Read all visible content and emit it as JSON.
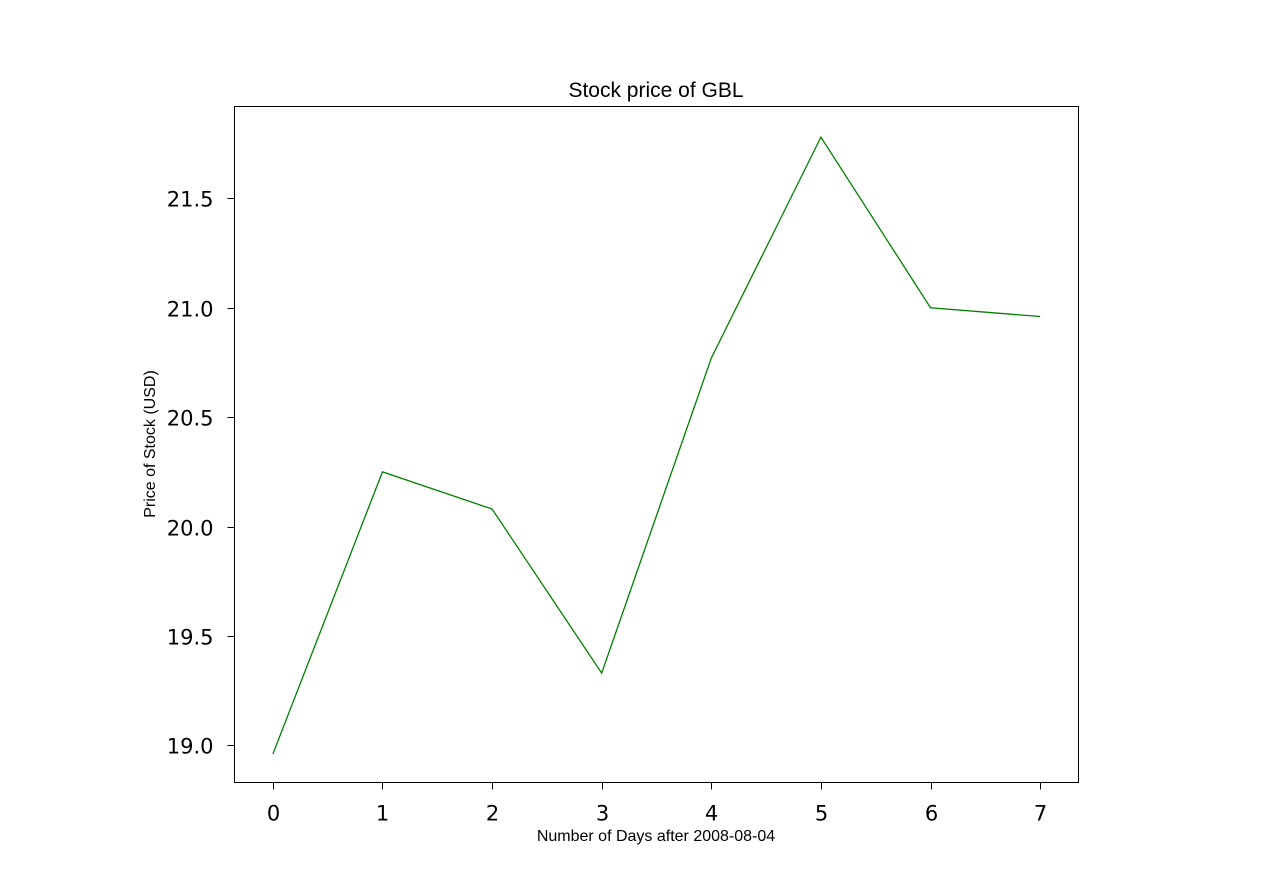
{
  "chart_data": {
    "type": "line",
    "title": "Stock price of GBL",
    "xlabel": "Number of Days after 2008-08-04",
    "ylabel": "Price of Stock (USD)",
    "x": [
      0,
      1,
      2,
      3,
      4,
      5,
      6,
      7
    ],
    "series": [
      {
        "color": "#008000",
        "values": [
          18.96,
          20.25,
          20.08,
          19.33,
          20.77,
          21.78,
          21.0,
          20.96
        ]
      }
    ],
    "xlim": [
      -0.35,
      7.35
    ],
    "ylim": [
      18.83,
      21.92
    ],
    "xticks": [
      "0",
      "1",
      "2",
      "3",
      "4",
      "5",
      "6",
      "7"
    ],
    "yticks": [
      "19.0",
      "19.5",
      "20.0",
      "20.5",
      "21.0",
      "21.5"
    ],
    "grid": false,
    "legend": "none"
  }
}
